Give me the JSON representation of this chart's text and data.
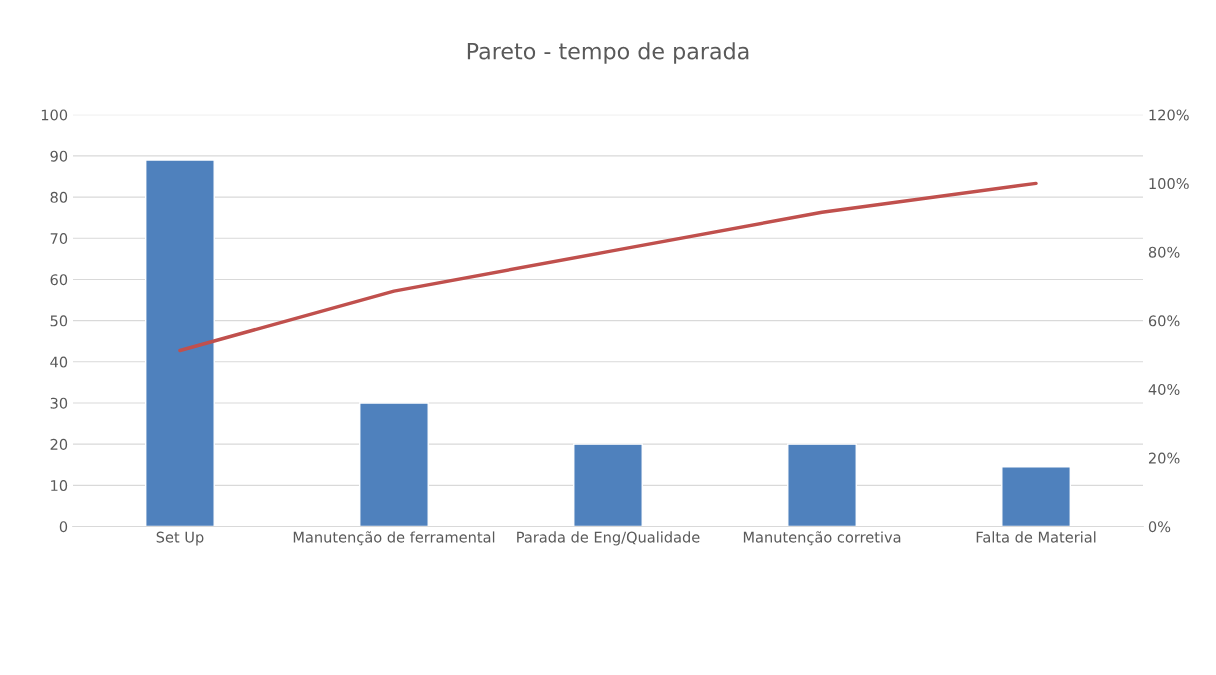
{
  "chart_data": {
    "type": "bar",
    "title": "Pareto - tempo de parada",
    "categories": [
      "Set Up",
      "Manutenção de ferramental",
      "Parada de Eng/Qualidade",
      "Manutenção corretiva",
      "Falta de Material"
    ],
    "series": [
      {
        "type": "bar",
        "color": "#4f81bd",
        "values": [
          89,
          30,
          20,
          20,
          14.5
        ]
      },
      {
        "type": "line",
        "axis": "y2",
        "color": "#c0504d",
        "values": [
          51.3,
          68.6,
          80.1,
          91.6,
          100
        ]
      }
    ],
    "ylim": [
      0,
      100
    ],
    "yticks": [
      0,
      10,
      20,
      30,
      40,
      50,
      60,
      70,
      80,
      90,
      100
    ],
    "y2lim": [
      0,
      120
    ],
    "y2ticks": [
      {
        "value": 0,
        "label": "0%"
      },
      {
        "value": 20,
        "label": "20%"
      },
      {
        "value": 40,
        "label": "40%"
      },
      {
        "value": 60,
        "label": "60%"
      },
      {
        "value": 80,
        "label": "80%"
      },
      {
        "value": 100,
        "label": "100%"
      },
      {
        "value": 120,
        "label": "120%"
      }
    ],
    "grid": "y",
    "legend": false,
    "marker": "none",
    "line_style": "solid"
  }
}
